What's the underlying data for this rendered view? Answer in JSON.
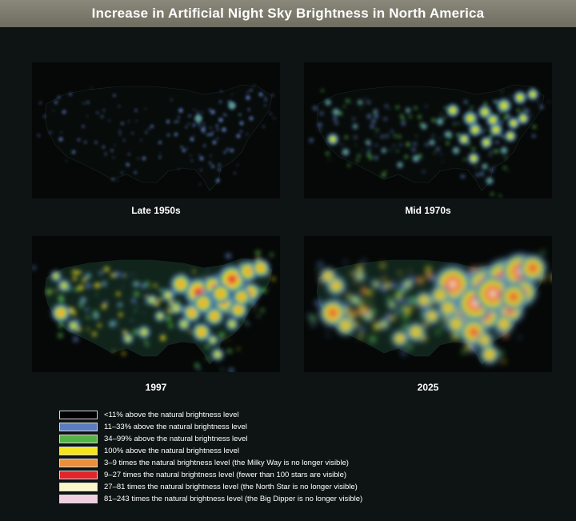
{
  "title": "Increase in Artificial Night Sky Brightness in North America",
  "panels": [
    {
      "label": "Late 1950s",
      "level": 1
    },
    {
      "label": "Mid 1970s",
      "level": 2
    },
    {
      "label": "1997",
      "level": 3
    },
    {
      "label": "2025",
      "level": 4
    }
  ],
  "legend": [
    {
      "color": "#000000",
      "label": "<11% above the natural brightness level"
    },
    {
      "color": "#5b7cc0",
      "label": "11–33% above the natural brightness level"
    },
    {
      "color": "#53b345",
      "label": "34–99% above the natural brightness level"
    },
    {
      "color": "#f4e61c",
      "label": "100% above the natural brightness level"
    },
    {
      "color": "#ec8f3a",
      "label": "3–9 times the natural brightness level (the Milky Way is no longer visible)"
    },
    {
      "color": "#e0262a",
      "label": "9–27 times the natural brightness level (fewer than 100 stars are visible)"
    },
    {
      "color": "#fbf5c8",
      "label": "27–81 times the natural brightness level (the North Star is no longer visible)"
    },
    {
      "color": "#f2cfe0",
      "label": "81–243 times the natural brightness level (the Big Dipper is no longer visible)"
    }
  ]
}
